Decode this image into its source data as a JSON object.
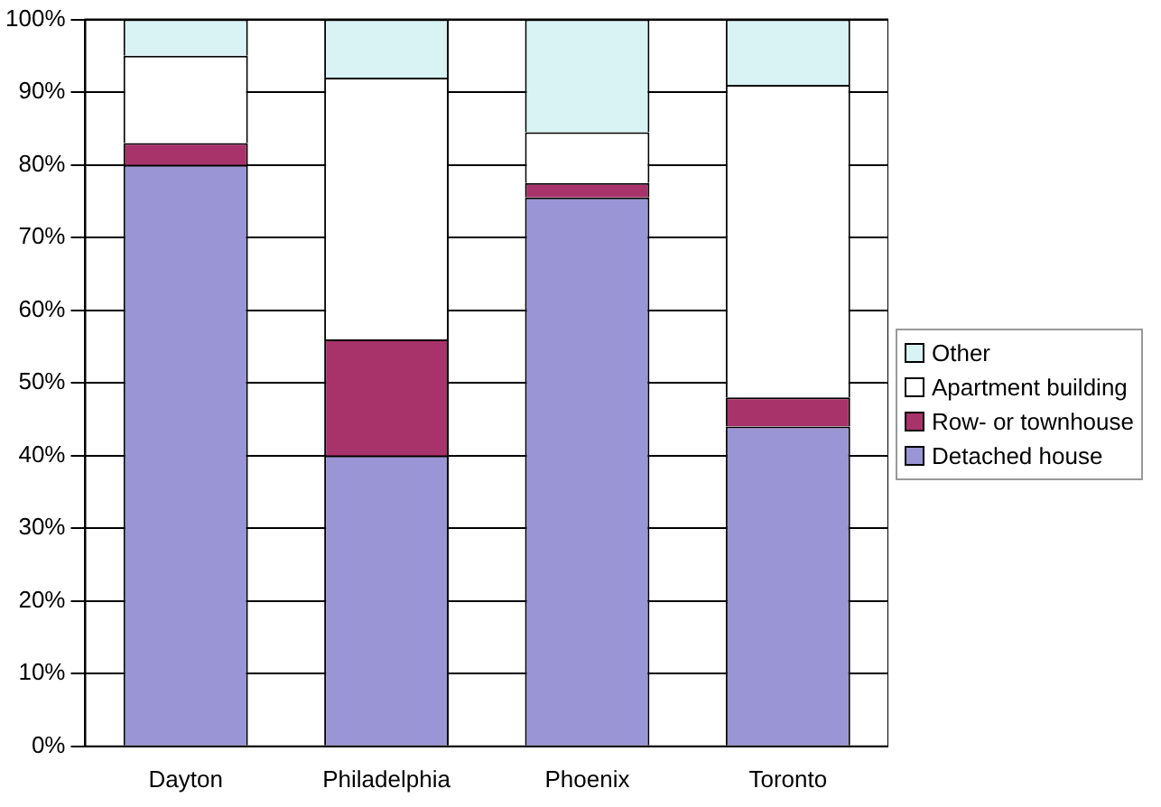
{
  "chart_data": {
    "type": "bar",
    "stacked": true,
    "categories": [
      "Dayton",
      "Philadelphia",
      "Phoenix",
      "Toronto"
    ],
    "series": [
      {
        "name": "Detached house",
        "color": "#9a95d4",
        "values": [
          80,
          40,
          75.5,
          44
        ]
      },
      {
        "name": "Row- or townhouse",
        "color": "#a8336b",
        "values": [
          3,
          16,
          2,
          4
        ]
      },
      {
        "name": "Apartment building",
        "color": "#ffffff",
        "values": [
          12,
          36,
          7,
          43
        ]
      },
      {
        "name": "Other",
        "color": "#d9f3f4",
        "values": [
          5,
          8,
          15.5,
          9
        ]
      }
    ],
    "ylim": [
      0,
      100
    ],
    "yticks": [
      {
        "value": 0,
        "label": "0%"
      },
      {
        "value": 10,
        "label": "10%"
      },
      {
        "value": 20,
        "label": "20%"
      },
      {
        "value": 30,
        "label": "30%"
      },
      {
        "value": 40,
        "label": "40%"
      },
      {
        "value": 50,
        "label": "50%"
      },
      {
        "value": 60,
        "label": "60%"
      },
      {
        "value": 70,
        "label": "70%"
      },
      {
        "value": 80,
        "label": "80%"
      },
      {
        "value": 90,
        "label": "90%"
      },
      {
        "value": 100,
        "label": "100%"
      }
    ],
    "grid": "y",
    "legend": "right"
  }
}
